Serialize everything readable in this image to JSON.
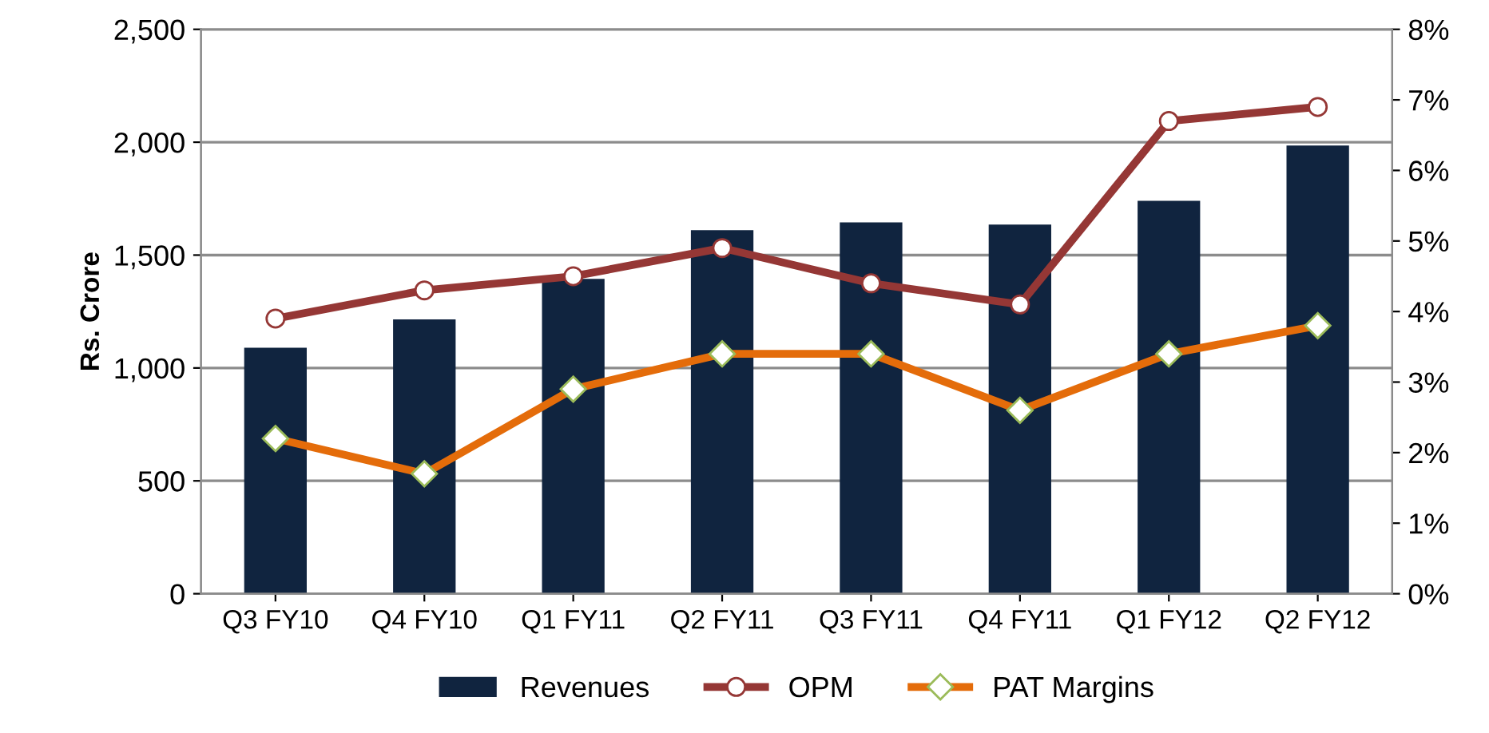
{
  "chart_data": {
    "type": "bar",
    "ylabel": "Rs. Crore",
    "categories": [
      "Q3 FY10",
      "Q4 FY10",
      "Q1 FY11",
      "Q2 FY11",
      "Q3 FY11",
      "Q4 FY11",
      "Q1 FY12",
      "Q2 FY12"
    ],
    "series": [
      {
        "name": "Revenues",
        "color": "#10243f",
        "values": [
          1090,
          1215,
          1395,
          1610,
          1645,
          1635,
          1740,
          1985
        ]
      },
      {
        "name": "OPM",
        "type": "line",
        "axis": "y2",
        "color": "#953735",
        "marker": "circle",
        "values": [
          3.9,
          4.3,
          4.5,
          4.9,
          4.4,
          4.1,
          6.7,
          6.9
        ]
      },
      {
        "name": "PAT Margins",
        "type": "line",
        "axis": "y2",
        "color": "#e46c0a",
        "marker": "diamond",
        "values": [
          2.2,
          1.7,
          2.9,
          3.4,
          3.4,
          2.6,
          3.4,
          3.8
        ]
      }
    ],
    "ylim": [
      0,
      2500
    ],
    "yticks": [
      {
        "value": 0,
        "label": "0"
      },
      {
        "value": 500,
        "label": "500"
      },
      {
        "value": 1000,
        "label": "1,000"
      },
      {
        "value": 1500,
        "label": "1,500"
      },
      {
        "value": 2000,
        "label": "2,000"
      },
      {
        "value": 2500,
        "label": "2,500"
      }
    ],
    "y2lim": [
      0,
      8
    ],
    "y2ticks": [
      {
        "value": 0,
        "label": "0%"
      },
      {
        "value": 1,
        "label": "1%"
      },
      {
        "value": 2,
        "label": "2%"
      },
      {
        "value": 3,
        "label": "3%"
      },
      {
        "value": 4,
        "label": "4%"
      },
      {
        "value": 5,
        "label": "5%"
      },
      {
        "value": 6,
        "label": "6%"
      },
      {
        "value": 7,
        "label": "7%"
      },
      {
        "value": 8,
        "label": "8%"
      }
    ],
    "grid": "y",
    "legend": "bottom"
  }
}
